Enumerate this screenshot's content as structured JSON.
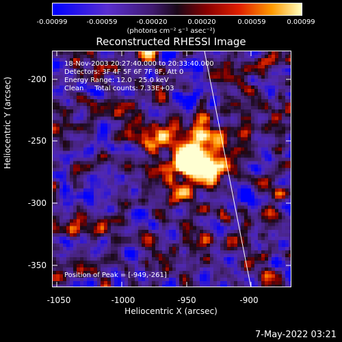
{
  "colorbar": {
    "ticks": [
      "-0.00099",
      "-0.00059",
      "-0.00020",
      "0.00020",
      "0.00059",
      "0.00099"
    ],
    "units": "(photons cm⁻² s⁻¹ asec⁻²)"
  },
  "title": "Reconstructed RHESSI Image",
  "info": {
    "line1": "18-Nov-2003 20:27:40.000 to 20:33:40.000",
    "line2": "Detectors: 3F 4F 5F 6F 7F 8F, Att 0",
    "line3": "Energy Range: 12.0 - 25.0 keV",
    "line4": "Clean     Total counts: 7.33E+03"
  },
  "peak": "Position of Peak = [-949,-261]",
  "x_axis": {
    "label": "Heliocentric X (arcsec)",
    "ticks": [
      "-1050",
      "-1000",
      "-950",
      "-900"
    ]
  },
  "y_axis": {
    "label": "Heliocentric Y (arcsec)",
    "ticks": [
      "-200",
      "-250",
      "-300",
      "-350"
    ]
  },
  "datestamp": "7-May-2022 03:21",
  "colors": {
    "background": "#000000",
    "limb_line": "#ffffff"
  }
}
